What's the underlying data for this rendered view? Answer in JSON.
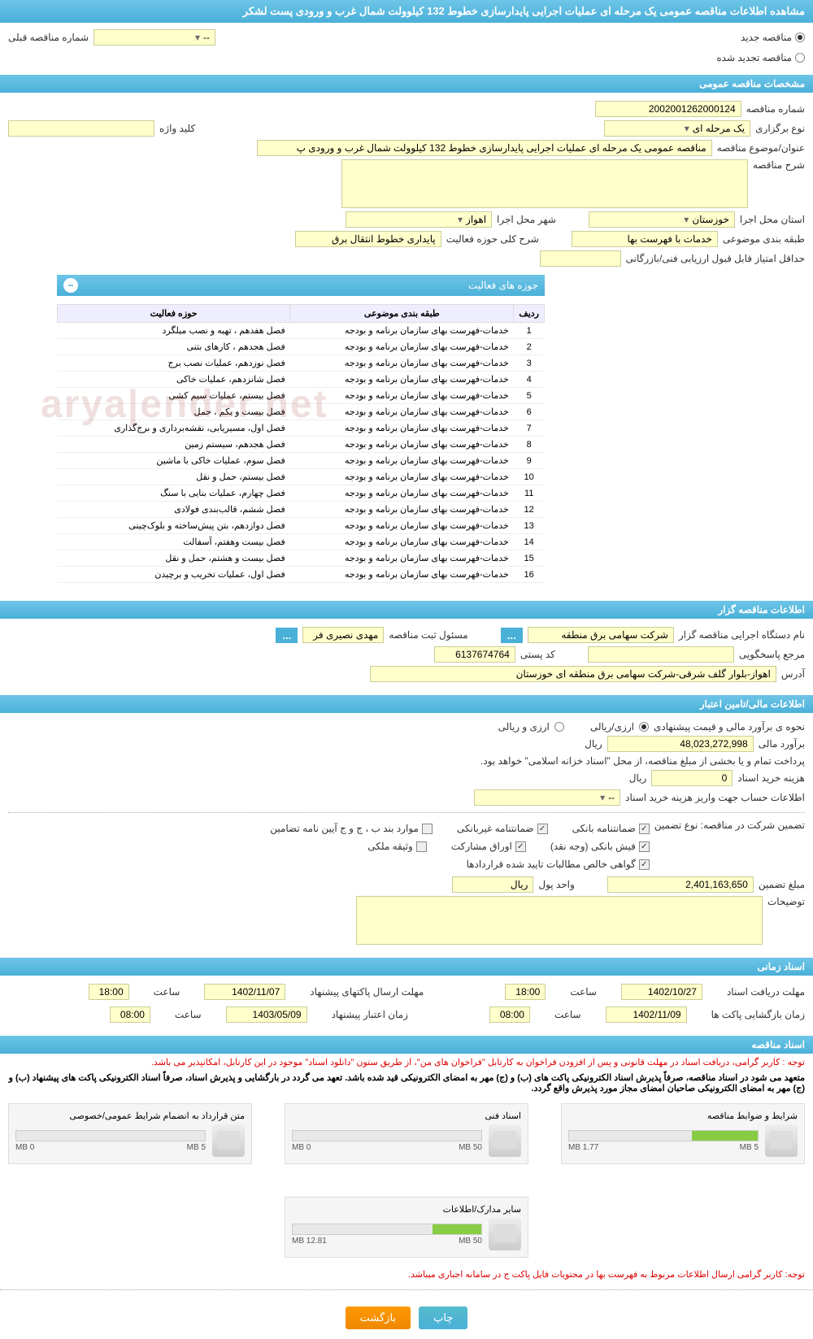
{
  "page_title": "مشاهده اطلاعات مناقصه عمومی یک مرحله ای عملیات اجرایی پایدارسازی خطوط 132 کیلوولت شمال غرب و ورودی پست لشکر",
  "top_radios": {
    "new": "مناقصه جدید",
    "renewed": "مناقصه تجدید شده",
    "prev_label": "شماره مناقصه قبلی",
    "prev_value": "--"
  },
  "sections": {
    "general": "مشخصات مناقصه عمومی",
    "organizer": "اطلاعات مناقصه گزار",
    "financial": "اطلاعات مالی/تامین اعتبار",
    "timing": "اسناد زمانی",
    "documents": "اسناد مناقصه"
  },
  "general": {
    "tender_no_label": "شماره مناقصه",
    "tender_no": "2002001262000124",
    "type_label": "نوع برگزاری",
    "type": "یک مرحله ای",
    "keyword_label": "کلید واژه",
    "keyword": "",
    "subject_label": "عنوان/موضوع مناقصه",
    "subject": "مناقصه عمومی یک مرحله ای عملیات اجرایی پایدارسازی خطوط 132 کیلوولت شمال غرب و ورودی پ",
    "desc_label": "شرح مناقصه",
    "desc": "",
    "province_label": "استان محل اجرا",
    "province": "خوزستان",
    "city_label": "شهر محل اجرا",
    "city": "اهواز",
    "category_label": "طبقه بندی موضوعی",
    "category": "خدمات با فهرست بها",
    "activity_scope_label": "شرح کلی حوزه فعالیت",
    "activity_scope": "پایداری خطوط انتقال برق",
    "min_score_label": "حداقل امتیاز قابل قبول ارزیابی فنی/بازرگانی",
    "min_score": ""
  },
  "activity_table": {
    "title": "جوزه های فعالیت",
    "cols": {
      "row": "ردیف",
      "category": "طبقه بندی موضوعی",
      "scope": "حوزه فعالیت"
    },
    "rows": [
      {
        "n": "1",
        "cat": "خدمات-فهرست بهای سازمان برنامه و بودجه",
        "scope": "فصل هفدهم ، تهیه و نصب میلگرد"
      },
      {
        "n": "2",
        "cat": "خدمات-فهرست بهای سازمان برنامه و بودجه",
        "scope": "فصل هجدهم ، کارهای بتنی"
      },
      {
        "n": "3",
        "cat": "خدمات-فهرست بهای سازمان برنامه و بودجه",
        "scope": "فصل نوزدهم، عملیات نصب برج"
      },
      {
        "n": "4",
        "cat": "خدمات-فهرست بهای سازمان برنامه و بودجه",
        "scope": "فصل شانزدهم، عملیات خاکی"
      },
      {
        "n": "5",
        "cat": "خدمات-فهرست بهای سازمان برنامه و بودجه",
        "scope": "فصل بیستم، عملیات سیم کشی"
      },
      {
        "n": "6",
        "cat": "خدمات-فهرست بهای سازمان برنامه و بودجه",
        "scope": "فصل بیست و یکم ، حمل"
      },
      {
        "n": "7",
        "cat": "خدمات-فهرست بهای سازمان برنامه و بودجه",
        "scope": "فصل اول، مسیریابی، نقشه‌برداری و برج‌گذاری"
      },
      {
        "n": "8",
        "cat": "خدمات-فهرست بهای سازمان برنامه و بودجه",
        "scope": "فصل هجدهم، سیستم زمین"
      },
      {
        "n": "9",
        "cat": "خدمات-فهرست بهای سازمان برنامه و بودجه",
        "scope": "فصل سوم، عملیات خاکی با ماشین"
      },
      {
        "n": "10",
        "cat": "خدمات-فهرست بهای سازمان برنامه و بودجه",
        "scope": "فصل بیستم، حمل و نقل"
      },
      {
        "n": "11",
        "cat": "خدمات-فهرست بهای سازمان برنامه و بودجه",
        "scope": "فصل چهارم، عملیات بنایی با سنگ"
      },
      {
        "n": "12",
        "cat": "خدمات-فهرست بهای سازمان برنامه و بودجه",
        "scope": "فصل ششم، قالب‌بندی فولادی"
      },
      {
        "n": "13",
        "cat": "خدمات-فهرست بهای سازمان برنامه و بودجه",
        "scope": "فصل دوازدهم، بتن پیش‌ساخته و بلوک‌چینی"
      },
      {
        "n": "14",
        "cat": "خدمات-فهرست بهای سازمان برنامه و بودجه",
        "scope": "فصل بیست وهفتم، آسفالت"
      },
      {
        "n": "15",
        "cat": "خدمات-فهرست بهای سازمان برنامه و بودجه",
        "scope": "فصل بیست و هشتم، حمل و نقل"
      },
      {
        "n": "16",
        "cat": "خدمات-فهرست بهای سازمان برنامه و بودجه",
        "scope": "فصل اول، عملیات تخریب و برچیدن"
      }
    ]
  },
  "organizer": {
    "org_label": "نام دستگاه اجرایی مناقصه گزار",
    "org": "شرکت سهامی برق منطقه",
    "responsible_label": "مسئول ثبت مناقصه",
    "responsible": "مهدی نصیری فر",
    "ref_label": "مرجع پاسخگویی",
    "ref": "",
    "postal_label": "کد پستی",
    "postal": "6137674764",
    "address_label": "آدرس",
    "address": "اهواز-بلوار گلف شرقی-شرکت سهامی برق منطقه ای خوزستان",
    "ellipsis": "..."
  },
  "financial": {
    "estimate_type_label": "نحوه ی برآورد مالی و قیمت پیشنهادی",
    "r1": "ارزی/ریالی",
    "r2": "ارزی و ریالی",
    "estimate_label": "برآورد مالی",
    "estimate": "48,023,272,998",
    "rial": "ریال",
    "payment_note": "پرداخت تمام و یا بخشی از مبلغ مناقصه، از محل \"اسناد خزانه اسلامی\" خواهد بود.",
    "doc_cost_label": "هزینه خرید اسناد",
    "doc_cost": "0",
    "account_label": "اطلاعات حساب جهت واریز هزینه خرید اسناد",
    "account": "--",
    "guarantee_type_label": "تضمین شرکت در مناقصه:   نوع تضمین",
    "guarantees": {
      "bank": "ضمانتنامه بانکی",
      "nonbank": "ضمانتنامه غیربانکی",
      "bond": "موارد بند ب ، ج و ج آیین نامه تضامین",
      "cash": "فیش بانکی (وجه نقد)",
      "participation": "اوراق مشارکت",
      "property": "وثیقه ملکی",
      "certificate": "گواهی خالص مطالبات تایید شده قراردادها"
    },
    "guarantee_amount_label": "مبلغ تضمین",
    "guarantee_amount": "2,401,163,650",
    "currency_label": "واحد پول",
    "currency": "ریال",
    "notes_label": "توضیحات",
    "notes": ""
  },
  "timing": {
    "receive_label": "مهلت دریافت اسناد",
    "receive_date": "1402/10/27",
    "receive_time": "18:00",
    "submit_label": "مهلت ارسال پاکتهای پیشنهاد",
    "submit_date": "1402/11/07",
    "submit_time": "18:00",
    "open_label": "زمان بازگشایی پاکت ها",
    "open_date": "1402/11/09",
    "open_time": "08:00",
    "validity_label": "زمان اعتبار پیشنهاد",
    "validity_date": "1403/05/09",
    "validity_time": "08:00",
    "time_label": "ساعت"
  },
  "documents": {
    "notice1": "توجه : کاربر گرامی، دریافت اسناد در مهلت قانونی و پس از افزودن فراخوان به کارتابل \"فراخوان های من\"، از طریق ستون \"دانلود اسناد\" موجود در این کارتابل، امکانپذیر می باشد.",
    "notice2": "متعهد می شود در اسناد مناقصه، صرفاً پذیرش اسناد الکترونیکی پاکت های (ب) و (ج) مهر به امضای الکترونیکی قید شده باشد. تعهد می گردد در بارگشایی و پذیرش اسناد، صرفاً اسناد الکترونیکی پاکت های پیشنهاد (ب) و (ج) مهر به امضای الکترونیکی صاحبان امضای مجاز مورد پذیرش واقع گردد.",
    "notice3": "توجه: کاربر گرامی ارسال اطلاعات مربوط به فهرست بها در محتویات فایل پاکت ج در سامانه اجباری میباشد.",
    "cards": [
      {
        "title": "شرایط و ضوابط مناقصه",
        "used": "1.77 MB",
        "total": "5 MB",
        "pct": 35
      },
      {
        "title": "اسناد فنی",
        "used": "0 MB",
        "total": "50 MB",
        "pct": 0
      },
      {
        "title": "متن قرارداد به انضمام شرایط عمومی/خصوصی",
        "used": "0 MB",
        "total": "5 MB",
        "pct": 0
      },
      {
        "title": "سایر مدارک/اطلاعات",
        "used": "12.81 MB",
        "total": "50 MB",
        "pct": 26
      }
    ]
  },
  "footer": {
    "print": "چاپ",
    "back": "بازگشت"
  },
  "watermark": "arya|ender.net"
}
